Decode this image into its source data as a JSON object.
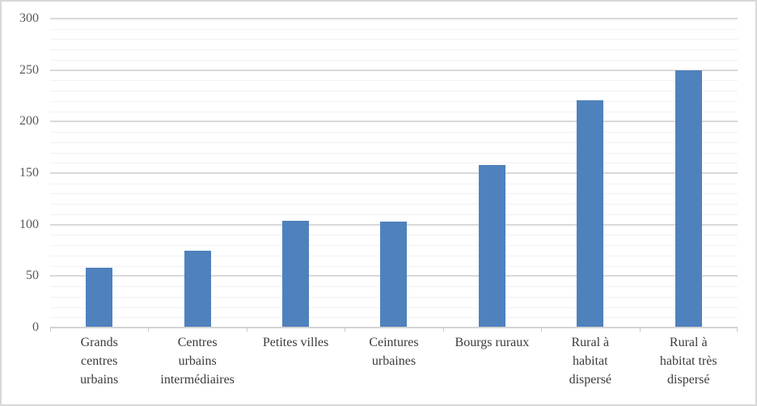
{
  "chart_data": {
    "type": "bar",
    "title": "",
    "categories": [
      "Grands centres urbains",
      "Centres urbains intermédiaires",
      "Petites villes",
      "Ceintures urbaines",
      "Bourgs ruraux",
      "Rural à habitat dispersé",
      "Rural à habitat très dispersé"
    ],
    "label_lines": [
      [
        "Grands",
        "centres",
        "urbains"
      ],
      [
        "Centres",
        "urbains",
        "intermédiaires"
      ],
      [
        "Petites villes"
      ],
      [
        "Ceintures",
        "urbaines"
      ],
      [
        "Bourgs ruraux"
      ],
      [
        "Rural à",
        "habitat",
        "dispersé"
      ],
      [
        "Rural à",
        "habitat très",
        "dispersé"
      ]
    ],
    "values": [
      58,
      75,
      104,
      103,
      158,
      221,
      250
    ],
    "xlabel": "",
    "ylabel": "",
    "ylim": [
      0,
      300
    ],
    "y_ticks": [
      0,
      50,
      100,
      150,
      200,
      250,
      300
    ],
    "y_major_step": 50,
    "y_minor_step": 10,
    "grid": true,
    "legend": false,
    "colors": {
      "bar": "#4F81BD",
      "major_gridline": "#D9D9D9",
      "minor_gridline": "#F1F1F1",
      "axis_line": "#D4D4D4",
      "tick_mark": "#C9C9C9",
      "y_label_text": "#595959",
      "x_label_text": "#3B3B3B",
      "background": "#FFFFFF",
      "figure_border": "#D8D8D8"
    }
  }
}
